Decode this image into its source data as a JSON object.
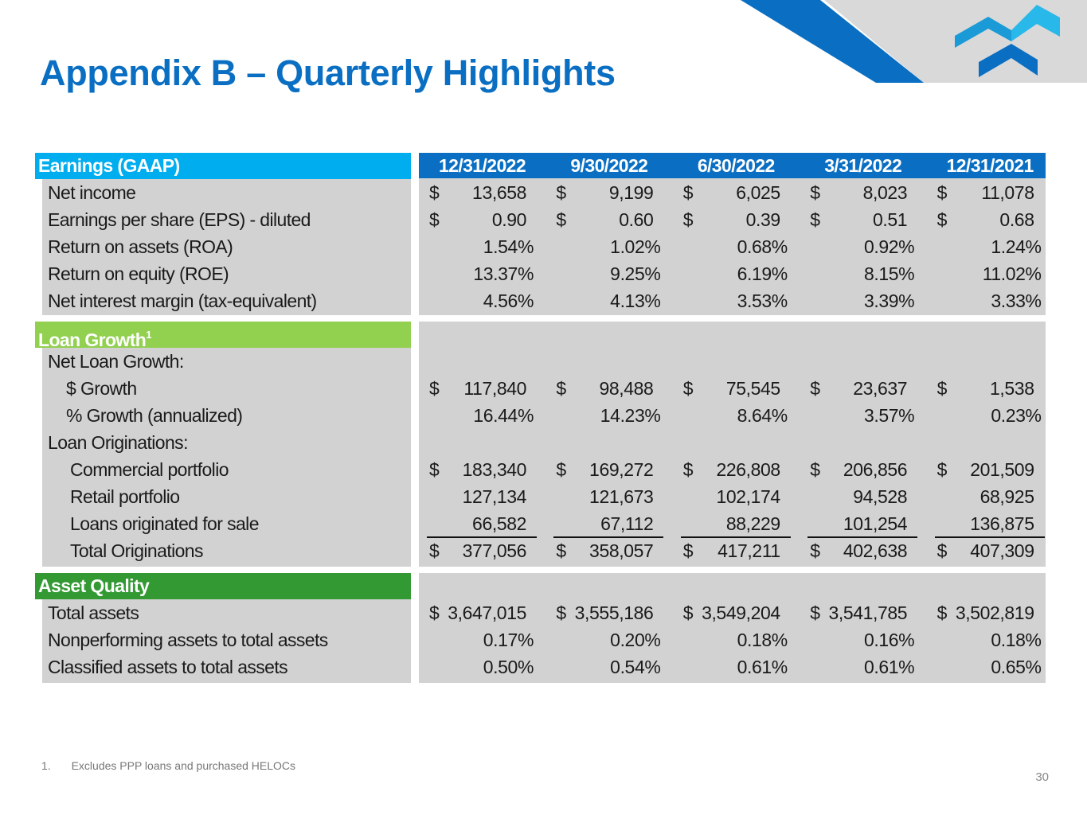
{
  "title": "Appendix B – Quarterly Highlights",
  "colors": {
    "brand_blue": "#0a6fc2",
    "light_blue": "#00aeef",
    "green_light": "#92d050",
    "green_dark": "#339933",
    "panel_gray": "#d2d2d2"
  },
  "dates": [
    "12/31/2022",
    "9/30/2022",
    "6/30/2022",
    "3/31/2022",
    "12/31/2021"
  ],
  "sections": [
    {
      "title": "Earnings (GAAP)",
      "sup": "",
      "color": "#00aeef",
      "rows": [
        {
          "label": "Net income",
          "indent": 0,
          "cells": [
            [
              "$",
              "13,658"
            ],
            [
              "$",
              "9,199"
            ],
            [
              "$",
              "6,025"
            ],
            [
              "$",
              "8,023"
            ],
            [
              "$",
              "11,078"
            ]
          ]
        },
        {
          "label": "Earnings per share (EPS) - diluted",
          "indent": 0,
          "cells": [
            [
              "$",
              "0.90"
            ],
            [
              "$",
              "0.60"
            ],
            [
              "$",
              "0.39"
            ],
            [
              "$",
              "0.51"
            ],
            [
              "$",
              "0.68"
            ]
          ]
        },
        {
          "label": "Return on assets (ROA)",
          "indent": 0,
          "pct": true,
          "cells": [
            [
              "",
              "1.54%"
            ],
            [
              "",
              "1.02%"
            ],
            [
              "",
              "0.68%"
            ],
            [
              "",
              "0.92%"
            ],
            [
              "",
              "1.24%"
            ]
          ]
        },
        {
          "label": "Return on equity (ROE)",
          "indent": 0,
          "pct": true,
          "cells": [
            [
              "",
              "13.37%"
            ],
            [
              "",
              "9.25%"
            ],
            [
              "",
              "6.19%"
            ],
            [
              "",
              "8.15%"
            ],
            [
              "",
              "11.02%"
            ]
          ]
        },
        {
          "label": "Net interest margin (tax-equivalent)",
          "indent": 0,
          "pct": true,
          "cells": [
            [
              "",
              "4.56%"
            ],
            [
              "",
              "4.13%"
            ],
            [
              "",
              "3.53%"
            ],
            [
              "",
              "3.39%"
            ],
            [
              "",
              "3.33%"
            ]
          ]
        }
      ]
    },
    {
      "title": "Loan Growth",
      "sup": "1",
      "color": "#92d050",
      "rows": [
        {
          "label": "Net Loan Growth:",
          "indent": 0,
          "cells": []
        },
        {
          "label": "$ Growth",
          "indent": 2,
          "cells": [
            [
              "$",
              "117,840"
            ],
            [
              "$",
              "98,488"
            ],
            [
              "$",
              "75,545"
            ],
            [
              "$",
              "23,637"
            ],
            [
              "$",
              "1,538"
            ]
          ]
        },
        {
          "label": "% Growth (annualized)",
          "indent": 2,
          "pct": true,
          "cells": [
            [
              "",
              "16.44%"
            ],
            [
              "",
              "14.23%"
            ],
            [
              "",
              "8.64%"
            ],
            [
              "",
              "3.57%"
            ],
            [
              "",
              "0.23%"
            ]
          ]
        },
        {
          "label": "Loan Originations:",
          "indent": 0,
          "cells": []
        },
        {
          "label": "Commercial portfolio",
          "indent": 1,
          "cells": [
            [
              "$",
              "183,340"
            ],
            [
              "$",
              "169,272"
            ],
            [
              "$",
              "226,808"
            ],
            [
              "$",
              "206,856"
            ],
            [
              "$",
              "201,509"
            ]
          ]
        },
        {
          "label": "Retail portfolio",
          "indent": 1,
          "cells": [
            [
              "",
              "127,134"
            ],
            [
              "",
              "121,673"
            ],
            [
              "",
              "102,174"
            ],
            [
              "",
              "94,528"
            ],
            [
              "",
              "68,925"
            ]
          ]
        },
        {
          "label": "Loans originated for sale",
          "indent": 1,
          "underline": true,
          "cells": [
            [
              "",
              "66,582"
            ],
            [
              "",
              "67,112"
            ],
            [
              "",
              "88,229"
            ],
            [
              "",
              "101,254"
            ],
            [
              "",
              "136,875"
            ]
          ]
        },
        {
          "label": "Total Originations",
          "indent": 1,
          "cells": [
            [
              "$",
              "377,056"
            ],
            [
              "$",
              "358,057"
            ],
            [
              "$",
              "417,211"
            ],
            [
              "$",
              "402,638"
            ],
            [
              "$",
              "407,309"
            ]
          ]
        }
      ]
    },
    {
      "title": "Asset Quality",
      "sup": "",
      "color": "#339933",
      "rows": [
        {
          "label": "Total assets",
          "indent": 0,
          "tight": true,
          "cells": [
            [
              "$",
              "3,647,015"
            ],
            [
              "$",
              "3,555,186"
            ],
            [
              "$",
              "3,549,204"
            ],
            [
              "$",
              "3,541,785"
            ],
            [
              "$",
              "3,502,819"
            ]
          ]
        },
        {
          "label": "Nonperforming assets to total assets",
          "indent": 0,
          "pct": true,
          "cells": [
            [
              "",
              "0.17%"
            ],
            [
              "",
              "0.20%"
            ],
            [
              "",
              "0.18%"
            ],
            [
              "",
              "0.16%"
            ],
            [
              "",
              "0.18%"
            ]
          ]
        },
        {
          "label": "Classified assets to total assets",
          "indent": 0,
          "pct": true,
          "cells": [
            [
              "",
              "0.50%"
            ],
            [
              "",
              "0.54%"
            ],
            [
              "",
              "0.61%"
            ],
            [
              "",
              "0.61%"
            ],
            [
              "",
              "0.65%"
            ]
          ]
        }
      ]
    }
  ],
  "footnote": {
    "number": "1.",
    "text": "Excludes PPP loans and purchased HELOCs"
  },
  "page_number": "30"
}
